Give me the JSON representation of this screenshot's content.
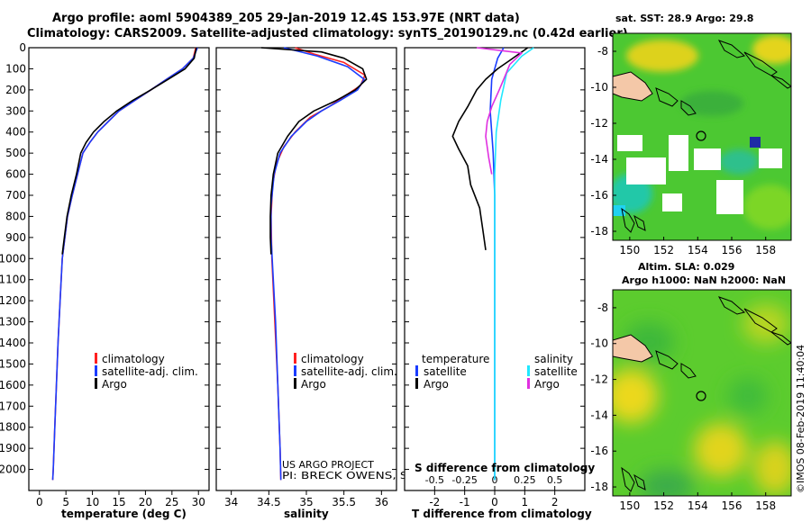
{
  "header": {
    "title_line1": "Argo profile: aoml 5904389_205 29-Jan-2019 12.4S 153.97E (NRT data)",
    "title_line2": "Climatology: CARS2009. Satellite-adjusted climatology: synTS_20190129.nc (0.42d earlier)"
  },
  "colors": {
    "climatology": "#ff2020",
    "satellite": "#1a3cff",
    "argo": "#000000",
    "argo_salinity_diff": "#e030e0",
    "satellite_salinity_diff": "#20e8ff",
    "land": "#f4c8a8"
  },
  "credits": {
    "line1": "US ARGO PROJECT",
    "line2": "PI: BRECK OWENS, STEVE JAYNE, P.E. ROBBINS",
    "imos": "©IMOS 08-Feb-2019 11:40:04"
  },
  "chart_data": [
    {
      "type": "line",
      "name": "temperature-profile",
      "xlabel": "temperature (deg C)",
      "ylabel": "depth",
      "xlim": [
        -2,
        32
      ],
      "ylim": [
        2100,
        0
      ],
      "xticks": [
        0,
        5,
        10,
        15,
        20,
        25,
        30
      ],
      "yticks": [
        0,
        100,
        200,
        300,
        400,
        500,
        600,
        700,
        800,
        900,
        1000,
        1100,
        1200,
        1300,
        1400,
        1500,
        1600,
        1700,
        1800,
        1900,
        2000
      ],
      "legend": [
        "climatology",
        "satellite-adj. clim.",
        "Argo"
      ],
      "series": [
        {
          "name": "climatology",
          "points": [
            [
              29.5,
              0
            ],
            [
              29,
              50
            ],
            [
              27,
              100
            ],
            [
              24,
              150
            ],
            [
              21,
              200
            ],
            [
              18,
              250
            ],
            [
              15,
              300
            ],
            [
              13,
              350
            ],
            [
              11,
              400
            ],
            [
              9.5,
              450
            ],
            [
              8.2,
              500
            ],
            [
              7.2,
              600
            ],
            [
              6.2,
              700
            ],
            [
              5.3,
              800
            ],
            [
              4.8,
              900
            ],
            [
              4.3,
              1000
            ],
            [
              3.9,
              1200
            ],
            [
              3.5,
              1400
            ],
            [
              3.2,
              1600
            ],
            [
              2.9,
              1800
            ],
            [
              2.6,
              2000
            ],
            [
              2.5,
              2050
            ]
          ]
        },
        {
          "name": "satellite-adj. clim.",
          "points": [
            [
              29.8,
              0
            ],
            [
              29,
              50
            ],
            [
              27,
              100
            ],
            [
              24,
              150
            ],
            [
              21,
              200
            ],
            [
              18,
              250
            ],
            [
              15,
              300
            ],
            [
              13,
              350
            ],
            [
              11,
              400
            ],
            [
              9.5,
              450
            ],
            [
              8.2,
              500
            ],
            [
              7.2,
              600
            ],
            [
              6.2,
              700
            ],
            [
              5.3,
              800
            ],
            [
              4.8,
              900
            ],
            [
              4.3,
              1000
            ],
            [
              3.9,
              1200
            ],
            [
              3.5,
              1400
            ],
            [
              3.2,
              1600
            ],
            [
              2.9,
              1800
            ],
            [
              2.6,
              2000
            ],
            [
              2.5,
              2050
            ]
          ]
        },
        {
          "name": "Argo",
          "points": [
            [
              29.6,
              0
            ],
            [
              29.2,
              50
            ],
            [
              27.5,
              100
            ],
            [
              24.3,
              150
            ],
            [
              21,
              200
            ],
            [
              17.6,
              250
            ],
            [
              14.6,
              300
            ],
            [
              12.2,
              350
            ],
            [
              10.2,
              400
            ],
            [
              8.8,
              450
            ],
            [
              7.8,
              500
            ],
            [
              7,
              600
            ],
            [
              6,
              700
            ],
            [
              5.2,
              800
            ],
            [
              4.7,
              900
            ],
            [
              4.3,
              980
            ]
          ]
        }
      ]
    },
    {
      "type": "line",
      "name": "salinity-profile",
      "xlabel": "salinity",
      "ylabel": "depth",
      "xlim": [
        33.8,
        36.2
      ],
      "ylim": [
        2100,
        0
      ],
      "xticks": [
        34,
        34.5,
        35,
        35.5,
        36
      ],
      "xtick_labels": [
        "34",
        "34.5",
        "35",
        "35.5",
        "36"
      ],
      "legend": [
        "climatology",
        "satellite-adj. clim.",
        "Argo"
      ],
      "series": [
        {
          "name": "climatology",
          "points": [
            [
              34.85,
              0
            ],
            [
              35.1,
              30
            ],
            [
              35.5,
              70
            ],
            [
              35.78,
              130
            ],
            [
              35.72,
              180
            ],
            [
              35.55,
              220
            ],
            [
              35.3,
              280
            ],
            [
              35.05,
              330
            ],
            [
              34.85,
              400
            ],
            [
              34.7,
              470
            ],
            [
              34.6,
              550
            ],
            [
              34.55,
              650
            ],
            [
              34.53,
              800
            ],
            [
              34.54,
              1000
            ],
            [
              34.58,
              1300
            ],
            [
              34.62,
              1600
            ],
            [
              34.65,
              1900
            ],
            [
              34.66,
              2050
            ]
          ]
        },
        {
          "name": "satellite-adj. clim.",
          "points": [
            [
              34.7,
              0
            ],
            [
              35.15,
              40
            ],
            [
              35.55,
              90
            ],
            [
              35.77,
              150
            ],
            [
              35.68,
              200
            ],
            [
              35.45,
              250
            ],
            [
              35.2,
              300
            ],
            [
              35,
              350
            ],
            [
              34.8,
              420
            ],
            [
              34.65,
              500
            ],
            [
              34.57,
              600
            ],
            [
              34.53,
              750
            ],
            [
              34.53,
              900
            ],
            [
              34.56,
              1100
            ],
            [
              34.59,
              1300
            ],
            [
              34.62,
              1600
            ],
            [
              34.65,
              1900
            ],
            [
              34.66,
              2050
            ]
          ]
        },
        {
          "name": "Argo",
          "points": [
            [
              34.4,
              0
            ],
            [
              35.2,
              20
            ],
            [
              35.5,
              50
            ],
            [
              35.75,
              100
            ],
            [
              35.8,
              150
            ],
            [
              35.65,
              200
            ],
            [
              35.4,
              250
            ],
            [
              35.1,
              300
            ],
            [
              34.9,
              350
            ],
            [
              34.75,
              420
            ],
            [
              34.62,
              500
            ],
            [
              34.56,
              600
            ],
            [
              34.53,
              700
            ],
            [
              34.52,
              800
            ],
            [
              34.52,
              900
            ],
            [
              34.53,
              980
            ]
          ]
        }
      ]
    },
    {
      "type": "line",
      "name": "difference-profile",
      "xlabel": "T difference from climatology",
      "top_axis_label": "S difference from climatology",
      "ylabel": "depth",
      "xlim": [
        -3,
        3
      ],
      "ylim": [
        2100,
        0
      ],
      "xticks": [
        -2,
        -1,
        0,
        1,
        2
      ],
      "top_ticks": [
        -0.5,
        -0.25,
        0,
        0.25,
        0.5
      ],
      "top_tick_labels": [
        "-0.5",
        "-0.25",
        "0",
        "0.25",
        "0.5"
      ],
      "legend_left_title": "temperature",
      "legend_right_title": "salinity",
      "legend_left": [
        "satellite",
        "Argo"
      ],
      "legend_right": [
        "satellite",
        "Argo"
      ],
      "series": [
        {
          "name": "temperature satellite",
          "points": [
            [
              0.3,
              0
            ],
            [
              0.1,
              50
            ],
            [
              -0.1,
              150
            ],
            [
              -0.15,
              300
            ],
            [
              -0.05,
              500
            ],
            [
              0,
              700
            ],
            [
              0,
              900
            ],
            [
              0,
              1100
            ],
            [
              0,
              1500
            ],
            [
              0,
              2050
            ]
          ]
        },
        {
          "name": "temperature Argo",
          "points": [
            [
              1.1,
              0
            ],
            [
              0.5,
              60
            ],
            [
              0.1,
              100
            ],
            [
              -0.3,
              150
            ],
            [
              -0.6,
              200
            ],
            [
              -0.9,
              280
            ],
            [
              -1.2,
              350
            ],
            [
              -1.4,
              420
            ],
            [
              -1.2,
              480
            ],
            [
              -0.9,
              560
            ],
            [
              -0.8,
              650
            ],
            [
              -0.5,
              760
            ],
            [
              -0.4,
              860
            ],
            [
              -0.3,
              960
            ]
          ]
        },
        {
          "name": "salinity satellite",
          "points": [
            [
              1.3,
              0
            ],
            [
              0.9,
              40
            ],
            [
              0.4,
              120
            ],
            [
              0.2,
              250
            ],
            [
              0.05,
              400
            ],
            [
              0,
              600
            ],
            [
              0,
              900
            ],
            [
              0,
              1300
            ],
            [
              0,
              1700
            ],
            [
              0,
              2050
            ]
          ]
        },
        {
          "name": "salinity Argo",
          "points": [
            [
              -0.6,
              0
            ],
            [
              0.9,
              25
            ],
            [
              0.5,
              80
            ],
            [
              0.3,
              150
            ],
            [
              0.15,
              200
            ],
            [
              -0.1,
              280
            ],
            [
              -0.25,
              350
            ],
            [
              -0.3,
              420
            ],
            [
              -0.2,
              520
            ],
            [
              -0.1,
              600
            ]
          ]
        }
      ]
    },
    {
      "type": "heatmap",
      "name": "sst-map",
      "title": "sat. SST: 28.9 Argo: 29.8",
      "xticks": [
        150,
        152,
        154,
        156,
        158
      ],
      "yticks": [
        -8,
        -10,
        -12,
        -14,
        -16,
        -18
      ],
      "xlim": [
        149,
        159.5
      ],
      "ylim": [
        -18.5,
        -7
      ],
      "argo_position": [
        153.97,
        -12.4
      ]
    },
    {
      "type": "heatmap",
      "name": "sla-map",
      "title_line1": "Altim. SLA: 0.029",
      "title_line2": "Argo h1000: NaN h2000: NaN",
      "xticks": [
        150,
        152,
        154,
        156,
        158
      ],
      "yticks": [
        -8,
        -10,
        -12,
        -14,
        -16,
        -18
      ],
      "xlim": [
        149,
        159.5
      ],
      "ylim": [
        -18.5,
        -7
      ],
      "argo_position": [
        153.97,
        -12.4
      ]
    }
  ]
}
